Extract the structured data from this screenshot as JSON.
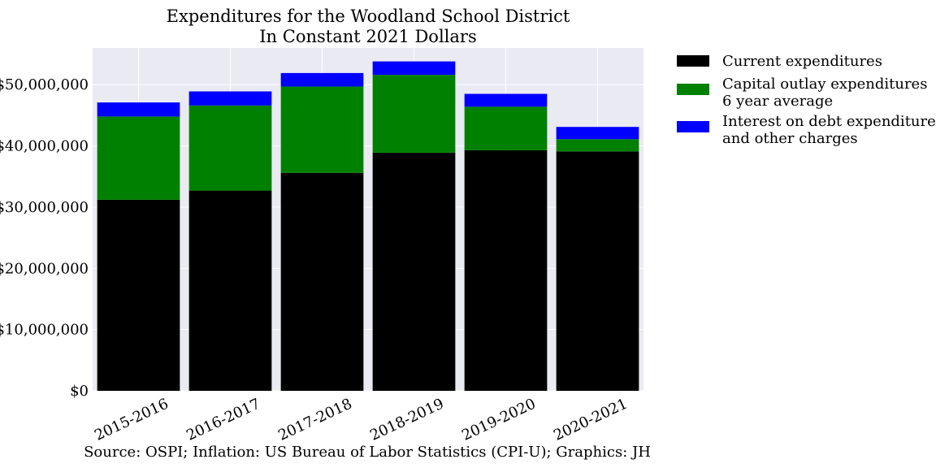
{
  "chart_data": {
    "type": "bar",
    "stacked": true,
    "title": [
      "Expenditures for the Woodland School District",
      "In Constant 2021 Dollars"
    ],
    "xlabel": "",
    "ylabel": "",
    "categories": [
      "2015-2016",
      "2016-2017",
      "2017-2018",
      "2018-2019",
      "2019-2020",
      "2020-2021"
    ],
    "series": [
      {
        "name": [
          "Current expenditures"
        ],
        "color": "#000000",
        "values": [
          31200000,
          32700000,
          35600000,
          38900000,
          39300000,
          39100000
        ]
      },
      {
        "name": [
          "Capital outlay expenditures",
          "6 year average"
        ],
        "color": "#008000",
        "values": [
          13600000,
          13900000,
          14100000,
          12700000,
          7100000,
          2000000
        ]
      },
      {
        "name": [
          "Interest on debt expenditures",
          "and other charges"
        ],
        "color": "#0000ff",
        "values": [
          2300000,
          2300000,
          2200000,
          2200000,
          2100000,
          2000000
        ]
      }
    ],
    "ylim": [
      0,
      56000000
    ],
    "yticks": [
      0,
      10000000,
      20000000,
      30000000,
      40000000,
      50000000
    ],
    "ytick_labels": [
      "$0",
      "$10,000,000",
      "$20,000,000",
      "$30,000,000",
      "$40,000,000",
      "$50,000,000"
    ],
    "grid": true,
    "legend_position": "outside-right",
    "background": "#eaeaf2"
  },
  "footer": {
    "source": "Source: OSPI; Inflation: US Bureau of Labor Statistics (CPI-U); Graphics: JH"
  }
}
